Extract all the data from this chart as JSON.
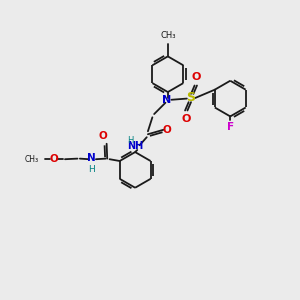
{
  "bg_color": "#ebebeb",
  "bond_color": "#1a1a1a",
  "N_color": "#0000cc",
  "O_color": "#dd0000",
  "S_color": "#bbbb00",
  "F_color": "#cc00cc",
  "H_color": "#008080",
  "figsize": [
    3.0,
    3.0
  ],
  "dpi": 100,
  "xlim": [
    0,
    10
  ],
  "ylim": [
    0,
    10
  ],
  "ring_r": 0.58,
  "lw": 1.3
}
